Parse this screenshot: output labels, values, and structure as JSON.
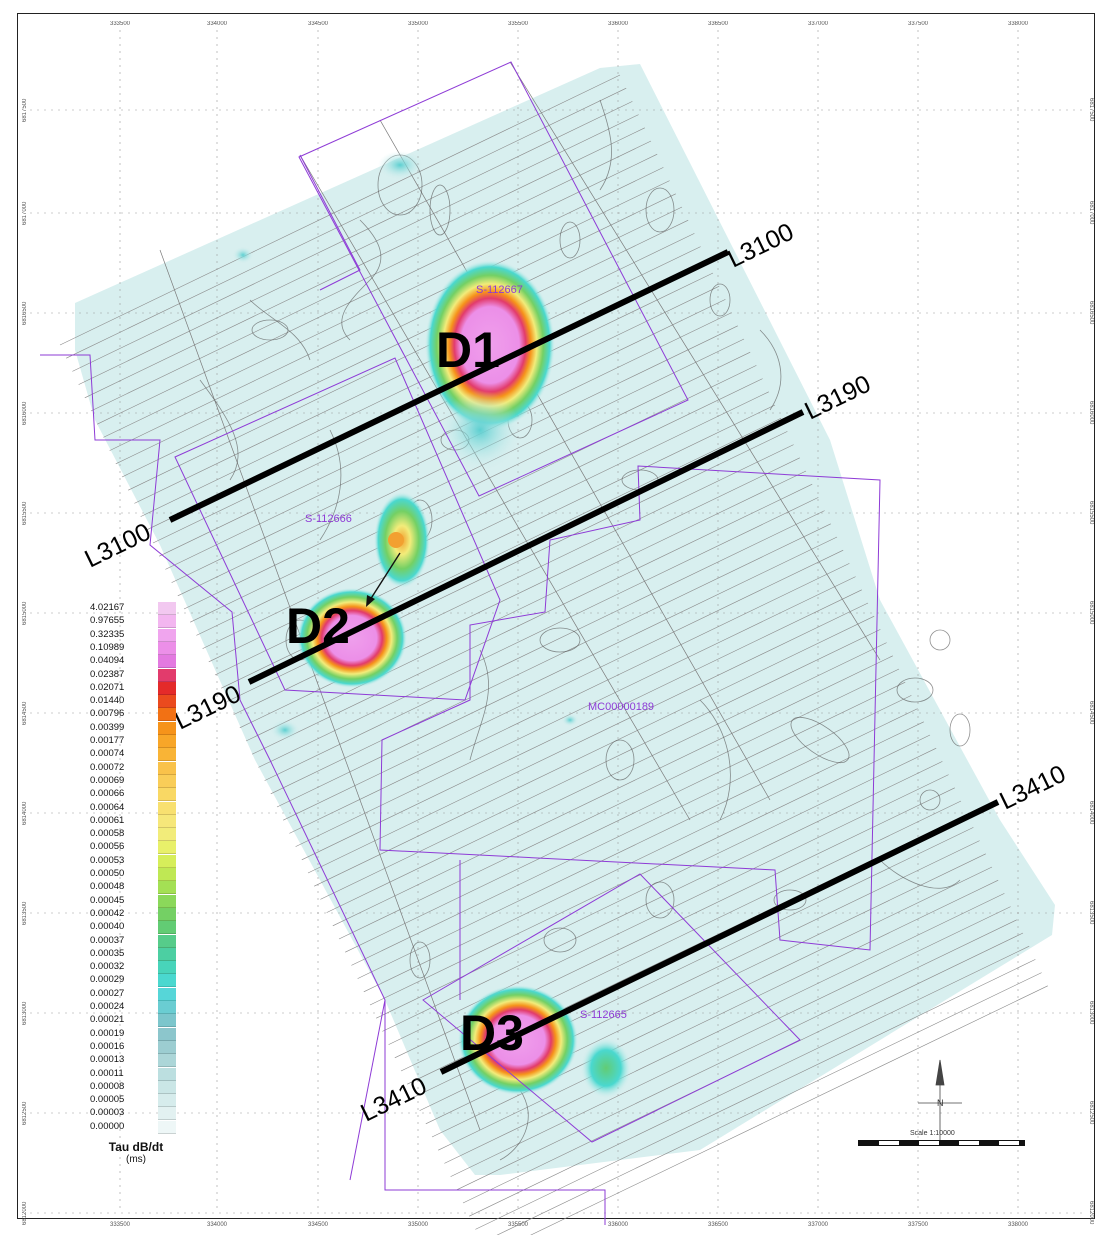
{
  "x_ticks": [
    "333500",
    "334000",
    "334500",
    "335000",
    "335500",
    "336000",
    "336500",
    "337000",
    "337500",
    "338000"
  ],
  "y_ticks": [
    "6817500",
    "6817000",
    "6816500",
    "6816000",
    "6815500",
    "6815000",
    "6814500",
    "6814000",
    "6813500",
    "6813000",
    "6812500",
    "6812000"
  ],
  "profile_lines": [
    {
      "label_start": "L3100",
      "label_end": "L3100"
    },
    {
      "label_start": "L3190",
      "label_end": "L3190"
    },
    {
      "label_start": "L3410",
      "label_end": "L3410"
    }
  ],
  "anomalies": [
    "D1",
    "D2",
    "D3"
  ],
  "claims": [
    "S-112667",
    "S-112666",
    "MC00000189",
    "S-112665"
  ],
  "legend": {
    "title": "Tau dB/dt",
    "units": "(ms)",
    "entries": [
      {
        "value": "4.02167",
        "color": "#f2c8f0"
      },
      {
        "value": "0.97655",
        "color": "#f3b6f0"
      },
      {
        "value": "0.32335",
        "color": "#f0a5ee"
      },
      {
        "value": "0.10989",
        "color": "#ec8fe8"
      },
      {
        "value": "0.04094",
        "color": "#e37ae0"
      },
      {
        "value": "0.02387",
        "color": "#e23b6c"
      },
      {
        "value": "0.02071",
        "color": "#e42a2a"
      },
      {
        "value": "0.01440",
        "color": "#ea4a1e"
      },
      {
        "value": "0.00796",
        "color": "#f27114"
      },
      {
        "value": "0.00399",
        "color": "#f6931a"
      },
      {
        "value": "0.00177",
        "color": "#f8a628"
      },
      {
        "value": "0.00074",
        "color": "#f9b436"
      },
      {
        "value": "0.00072",
        "color": "#f9c24a"
      },
      {
        "value": "0.00069",
        "color": "#f9cd58"
      },
      {
        "value": "0.00066",
        "color": "#f9d864"
      },
      {
        "value": "0.00064",
        "color": "#f8e070"
      },
      {
        "value": "0.00061",
        "color": "#f6e77a"
      },
      {
        "value": "0.00058",
        "color": "#f2ec7a"
      },
      {
        "value": "0.00056",
        "color": "#e8f06a"
      },
      {
        "value": "0.00053",
        "color": "#d6ee5a"
      },
      {
        "value": "0.00050",
        "color": "#bfe854"
      },
      {
        "value": "0.00048",
        "color": "#a4e054"
      },
      {
        "value": "0.00045",
        "color": "#8bd85a"
      },
      {
        "value": "0.00042",
        "color": "#74d064"
      },
      {
        "value": "0.00040",
        "color": "#62cc74"
      },
      {
        "value": "0.00037",
        "color": "#56cc8a"
      },
      {
        "value": "0.00035",
        "color": "#4ccfa2"
      },
      {
        "value": "0.00032",
        "color": "#48d4ba"
      },
      {
        "value": "0.00029",
        "color": "#4ad8cf"
      },
      {
        "value": "0.00027",
        "color": "#56d6d8"
      },
      {
        "value": "0.00024",
        "color": "#6acdd2"
      },
      {
        "value": "0.00021",
        "color": "#7cc6cc"
      },
      {
        "value": "0.00019",
        "color": "#8cc6cc"
      },
      {
        "value": "0.00016",
        "color": "#9ccdd1"
      },
      {
        "value": "0.00013",
        "color": "#acd6d8"
      },
      {
        "value": "0.00011",
        "color": "#bcdfe0"
      },
      {
        "value": "0.00008",
        "color": "#cae6e6"
      },
      {
        "value": "0.00005",
        "color": "#d6ecec"
      },
      {
        "value": "0.00003",
        "color": "#e2f1f1"
      },
      {
        "value": "0.00000",
        "color": "#eef7f7"
      }
    ]
  },
  "scale": {
    "text": "Scale 1:10000"
  }
}
